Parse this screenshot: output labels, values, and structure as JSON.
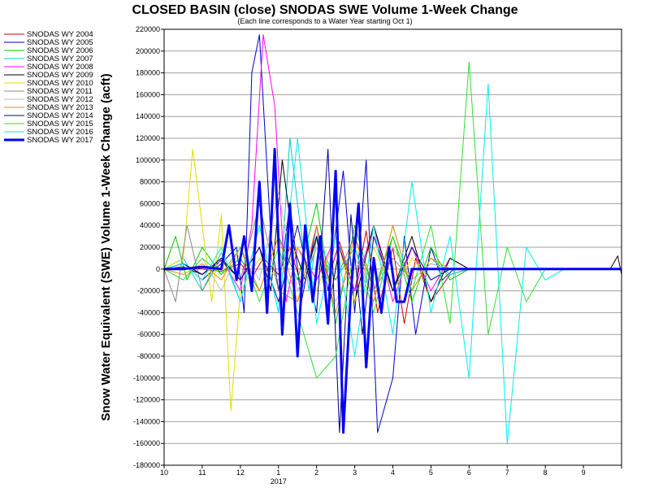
{
  "chart_data": {
    "type": "line",
    "title": "CLOSED BASIN (close) SNODAS SWE Volume 1-Week Change",
    "subtitle": "(Each line corresponds to a Water Year starting Oct 1)",
    "ylabel": "Snow Water Equivalent (SWE) Volume 1-Week Change (acft)",
    "xlabel": "",
    "year_label": "2017",
    "ylim": [
      -180000,
      220000
    ],
    "yticks": [
      -180000,
      -160000,
      -140000,
      -120000,
      -100000,
      -80000,
      -60000,
      -40000,
      -20000,
      0,
      20000,
      40000,
      60000,
      80000,
      100000,
      120000,
      140000,
      160000,
      180000,
      200000,
      220000
    ],
    "ytick_labels": [
      "-180000",
      "-160000",
      "-140000",
      "-120000",
      "-100000",
      "-80000",
      "-60000",
      "-40000",
      "-20000",
      "0",
      "20000",
      "40000",
      "60000",
      "80000",
      "100000",
      "120000",
      "140000",
      "160000",
      "180000",
      "200000",
      "220000"
    ],
    "xlim": [
      0,
      12
    ],
    "xticks": [
      0,
      1,
      2,
      3,
      4,
      5,
      6,
      7,
      8,
      9,
      10,
      11,
      12
    ],
    "xtick_labels": [
      "10",
      "11",
      "12",
      "1",
      "2",
      "3",
      "4",
      "5",
      "6",
      "7",
      "8",
      "9",
      ""
    ],
    "grid": "horizontal",
    "legend_position": "left",
    "series": [
      {
        "name": "SNODAS WY 2004",
        "color": "#cc0000",
        "width": 1,
        "x": [
          0,
          0.5,
          1,
          1.5,
          2,
          2.3,
          2.6,
          3,
          3.3,
          3.6,
          4,
          4.3,
          4.6,
          5,
          5.3,
          5.6,
          6,
          6.3,
          6.6,
          7,
          7.5,
          8,
          9,
          10,
          11,
          12
        ],
        "y": [
          0,
          0,
          0,
          -2000,
          5000,
          -8000,
          10000,
          -5000,
          20000,
          -15000,
          30000,
          -10000,
          25000,
          -20000,
          35000,
          -40000,
          20000,
          -50000,
          10000,
          -30000,
          -5000,
          0,
          0,
          0,
          0,
          0
        ]
      },
      {
        "name": "SNODAS WY 2005",
        "color": "#0000cc",
        "width": 1,
        "x": [
          0,
          0.5,
          1,
          1.5,
          1.9,
          2.1,
          2.3,
          2.5,
          2.8,
          3.0,
          3.3,
          3.6,
          4,
          4.3,
          4.7,
          5,
          5.3,
          5.6,
          6,
          6.3,
          6.6,
          7,
          7.3,
          7.6,
          8,
          9,
          10,
          11,
          12
        ],
        "y": [
          0,
          5000,
          -10000,
          5000,
          20000,
          -40000,
          180000,
          215000,
          30000,
          -20000,
          60000,
          -30000,
          40000,
          -20000,
          90000,
          -40000,
          100000,
          -150000,
          -100000,
          30000,
          -60000,
          20000,
          -10000,
          0,
          0,
          0,
          0,
          0,
          0
        ]
      },
      {
        "name": "SNODAS WY 2006",
        "color": "#00cc00",
        "width": 1,
        "x": [
          0,
          0.3,
          0.6,
          1,
          1.5,
          2,
          2.5,
          3,
          3.5,
          4,
          4.5,
          5,
          5.5,
          6,
          6.5,
          7,
          7.5,
          8,
          9,
          10,
          11,
          12
        ],
        "y": [
          0,
          30000,
          -10000,
          20000,
          -5000,
          10000,
          -20000,
          30000,
          -10000,
          60000,
          -50000,
          40000,
          -20000,
          30000,
          -30000,
          20000,
          -10000,
          0,
          0,
          0,
          0,
          0
        ]
      },
      {
        "name": "SNODAS WY 2007",
        "color": "#00cccc",
        "width": 1,
        "x": [
          0,
          0.5,
          1,
          1.5,
          2,
          2.5,
          3,
          3.3,
          3.5,
          3.8,
          4,
          4.5,
          5,
          5.5,
          6,
          6.5,
          7,
          7.5,
          8,
          9,
          10,
          11,
          12
        ],
        "y": [
          0,
          10000,
          -20000,
          15000,
          -30000,
          40000,
          -40000,
          120000,
          60000,
          -20000,
          30000,
          -10000,
          20000,
          -30000,
          40000,
          -20000,
          10000,
          -5000,
          0,
          0,
          0,
          0,
          0
        ]
      },
      {
        "name": "SNODAS WY 2008",
        "color": "#ff00ff",
        "width": 1,
        "x": [
          0,
          0.5,
          1,
          1.5,
          2,
          2.3,
          2.6,
          2.9,
          3.2,
          3.5,
          4,
          4.5,
          5,
          5.5,
          6,
          6.5,
          7,
          7.5,
          8,
          9,
          10,
          11,
          12
        ],
        "y": [
          0,
          5000,
          -5000,
          10000,
          -20000,
          40000,
          215000,
          150000,
          -30000,
          20000,
          -10000,
          30000,
          -20000,
          40000,
          -30000,
          20000,
          -20000,
          10000,
          0,
          0,
          0,
          0,
          0
        ]
      },
      {
        "name": "SNODAS WY 2009",
        "color": "#000000",
        "width": 1,
        "x": [
          0,
          0.5,
          1,
          1.5,
          2,
          2.5,
          2.8,
          3.1,
          3.4,
          3.7,
          4,
          4.3,
          4.6,
          5,
          5.5,
          6,
          6.5,
          7,
          7.5,
          8,
          9,
          10,
          11,
          11.7,
          11.9,
          12
        ],
        "y": [
          0,
          2000,
          -5000,
          8000,
          -10000,
          20000,
          -20000,
          100000,
          20000,
          -10000,
          30000,
          -40000,
          20000,
          -30000,
          40000,
          -20000,
          30000,
          -30000,
          10000,
          0,
          0,
          0,
          0,
          0,
          12000,
          -5000
        ]
      },
      {
        "name": "SNODAS WY 2010",
        "color": "#dddd00",
        "width": 1,
        "x": [
          0,
          0.5,
          0.75,
          1,
          1.25,
          1.5,
          1.75,
          2,
          2.5,
          3,
          3.5,
          4,
          4.5,
          5,
          5.5,
          6,
          6.5,
          7,
          7.5,
          8,
          9,
          10,
          11,
          12
        ],
        "y": [
          0,
          10000,
          110000,
          40000,
          -30000,
          50000,
          -130000,
          -20000,
          10000,
          -10000,
          20000,
          -20000,
          30000,
          -30000,
          20000,
          -20000,
          10000,
          -10000,
          0,
          0,
          0,
          0,
          0,
          0
        ]
      },
      {
        "name": "SNODAS WY 2011",
        "color": "#888888",
        "width": 1,
        "x": [
          0,
          0.3,
          0.6,
          1,
          1.5,
          2,
          2.5,
          3,
          3.5,
          4,
          4.5,
          5,
          5.5,
          6,
          6.5,
          7,
          7.5,
          8,
          9,
          10,
          11,
          12
        ],
        "y": [
          0,
          -30000,
          40000,
          -20000,
          10000,
          -10000,
          60000,
          -20000,
          -30000,
          20000,
          -10000,
          30000,
          -20000,
          10000,
          -10000,
          5000,
          0,
          0,
          0,
          0,
          0,
          0
        ]
      },
      {
        "name": "SNODAS WY 2012",
        "color": "#bbbbbb",
        "width": 1,
        "x": [
          0,
          0.5,
          1,
          1.5,
          2,
          2.5,
          3,
          3.5,
          4,
          4.5,
          5,
          5.5,
          6,
          6.5,
          7,
          7.5,
          8,
          9,
          10,
          11,
          12
        ],
        "y": [
          0,
          -10000,
          10000,
          -20000,
          20000,
          -10000,
          70000,
          -20000,
          20000,
          -30000,
          10000,
          -20000,
          20000,
          -10000,
          5000,
          0,
          0,
          0,
          0,
          0,
          0
        ]
      },
      {
        "name": "SNODAS WY 2013",
        "color": "#ff8800",
        "width": 1,
        "x": [
          0,
          0.5,
          1,
          1.5,
          2,
          2.5,
          3,
          3.5,
          4,
          4.5,
          5,
          5.5,
          6,
          6.5,
          7,
          7.5,
          8,
          9,
          10,
          11,
          12
        ],
        "y": [
          0,
          -5000,
          5000,
          -10000,
          20000,
          -20000,
          30000,
          -30000,
          40000,
          -40000,
          30000,
          -30000,
          40000,
          -20000,
          10000,
          0,
          0,
          0,
          0,
          0,
          0
        ]
      },
      {
        "name": "SNODAS WY 2014",
        "color": "#000088",
        "width": 1,
        "x": [
          0,
          0.5,
          1,
          1.5,
          2,
          2.5,
          3,
          3.5,
          4,
          4.3,
          4.6,
          4.9,
          5.2,
          5.5,
          6,
          6.5,
          7,
          7.5,
          8,
          9,
          10,
          11,
          12
        ],
        "y": [
          0,
          5000,
          -5000,
          10000,
          -10000,
          20000,
          -30000,
          40000,
          -40000,
          110000,
          -150000,
          50000,
          -60000,
          30000,
          -20000,
          20000,
          -10000,
          0,
          0,
          0,
          0,
          0,
          0
        ]
      },
      {
        "name": "SNODAS WY 2015",
        "color": "#33dd33",
        "width": 1,
        "x": [
          0,
          0.5,
          1,
          1.5,
          2,
          2.5,
          3,
          3.5,
          4,
          4.5,
          5,
          5.5,
          6,
          6.5,
          7,
          7.5,
          8,
          8.5,
          9,
          9.5,
          10,
          10.5,
          11,
          12
        ],
        "y": [
          0,
          -10000,
          10000,
          -5000,
          20000,
          -30000,
          20000,
          -40000,
          -100000,
          -80000,
          20000,
          -40000,
          30000,
          -20000,
          40000,
          -50000,
          190000,
          -60000,
          20000,
          -30000,
          0,
          0,
          0,
          0
        ]
      },
      {
        "name": "SNODAS WY 2016",
        "color": "#00eeee",
        "width": 1,
        "x": [
          0,
          0.5,
          1,
          1.5,
          2,
          2.5,
          3,
          3.5,
          4,
          4.5,
          5,
          5.5,
          6,
          6.5,
          7,
          7.5,
          8,
          8.5,
          9,
          9.5,
          10,
          10.5,
          11,
          12
        ],
        "y": [
          0,
          5000,
          -10000,
          20000,
          -30000,
          40000,
          -40000,
          120000,
          -50000,
          30000,
          -80000,
          40000,
          -60000,
          80000,
          -40000,
          30000,
          -100000,
          170000,
          -160000,
          20000,
          -10000,
          0,
          0,
          0
        ]
      },
      {
        "name": "SNODAS WY 2017",
        "color": "#0000ff",
        "width": 3,
        "x": [
          0,
          0.5,
          1,
          1.5,
          1.7,
          1.9,
          2.1,
          2.3,
          2.5,
          2.7,
          2.9,
          3.1,
          3.3,
          3.5,
          3.7,
          3.9,
          4.1,
          4.3,
          4.5,
          4.7,
          4.9,
          5.1,
          5.3,
          5.5,
          5.7,
          5.9,
          6.1,
          6.3,
          6.5,
          7,
          7.5,
          8,
          9,
          10,
          11,
          12
        ],
        "y": [
          0,
          0,
          2000,
          0,
          40000,
          -10000,
          30000,
          -20000,
          80000,
          -40000,
          110000,
          -60000,
          60000,
          -80000,
          40000,
          -30000,
          30000,
          -50000,
          90000,
          -150000,
          -20000,
          60000,
          -90000,
          10000,
          -40000,
          20000,
          -30000,
          -30000,
          0,
          0,
          0,
          0,
          0,
          0,
          0,
          0
        ]
      }
    ]
  }
}
